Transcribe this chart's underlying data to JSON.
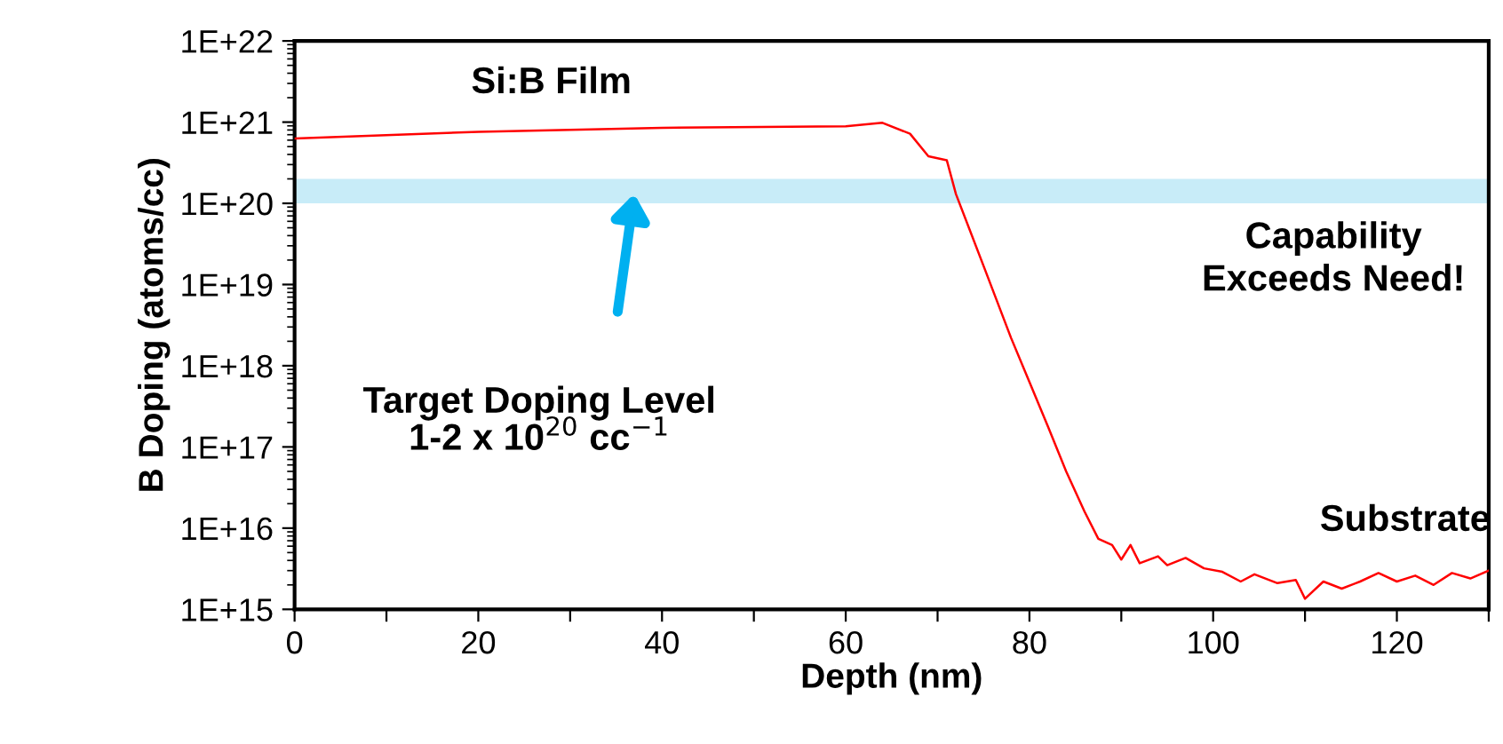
{
  "chart_data": {
    "type": "line",
    "xlabel": "Depth (nm)",
    "ylabel": "B Doping (atoms/cc)",
    "x": [
      0,
      20,
      40,
      60,
      64,
      67,
      69,
      71,
      72,
      75,
      78,
      80,
      82,
      84,
      86,
      87.5,
      89,
      90,
      91,
      92,
      94,
      95,
      97,
      99,
      101,
      103,
      104.5,
      107,
      109,
      110,
      112,
      114,
      116,
      118,
      120,
      122,
      124,
      126,
      128,
      130
    ],
    "series": [
      {
        "color": "#ff0000",
        "values": [
          6.3e+20,
          7.6e+20,
          8.5e+20,
          8.9e+20,
          9.8e+20,
          7.2e+20,
          3.8e+20,
          3.4e+20,
          1.3e+20,
          1.7e+19,
          2.2e+18,
          6.3e+17,
          1.8e+17,
          5e+16,
          1.6e+16,
          7400000000000000.0,
          6200000000000000.0,
          4100000000000000.0,
          6200000000000000.0,
          3700000000000000.0,
          4500000000000000.0,
          3500000000000000.0,
          4300000000000000.0,
          3200000000000000.0,
          2900000000000000.0,
          2200000000000000.0,
          2700000000000000.0,
          2100000000000000.0,
          2300000000000000.0,
          1350000000000000.0,
          2200000000000000.0,
          1800000000000000.0,
          2200000000000000.0,
          2800000000000000.0,
          2200000000000000.0,
          2600000000000000.0,
          2000000000000000.0,
          2800000000000000.0,
          2400000000000000.0,
          3000000000000000.0
        ]
      }
    ],
    "log": "y",
    "xlim": [
      0,
      130
    ],
    "xticks": [
      0,
      {
        "value": 10,
        "label": null
      },
      20,
      {
        "value": 30,
        "label": null
      },
      40,
      {
        "value": 50,
        "label": null
      },
      60,
      {
        "value": 70,
        "label": null
      },
      80,
      {
        "value": 90,
        "label": null
      },
      100,
      {
        "value": 110,
        "label": null
      },
      120,
      {
        "value": 130,
        "label": null
      }
    ],
    "ylim": [
      1000000000000000.0,
      1e+22
    ],
    "yticks": [
      {
        "value": 1000000000000000.0,
        "label": "1E+15"
      },
      {
        "value": 1e+16,
        "label": "1E+16"
      },
      {
        "value": 1e+17,
        "label": "1E+17"
      },
      {
        "value": 1e+18,
        "label": "1E+18"
      },
      {
        "value": 1e+19,
        "label": "1E+19"
      },
      {
        "value": 1e+20,
        "label": "1E+20"
      },
      {
        "value": 1e+21,
        "label": "1E+21"
      },
      {
        "value": 1e+22,
        "label": "1E+22"
      }
    ],
    "bands": [
      {
        "axis": "y",
        "from": 1e+20,
        "to": 2e+20,
        "color": "#c8ecf8"
      }
    ],
    "annotations": [
      "Si:B Film",
      "Target Doping Level\n1-2 x 10$^{20}$ cc$^{−1}$",
      "Capability\nExceeds Need!",
      "Substrate"
    ],
    "grid": false
  }
}
